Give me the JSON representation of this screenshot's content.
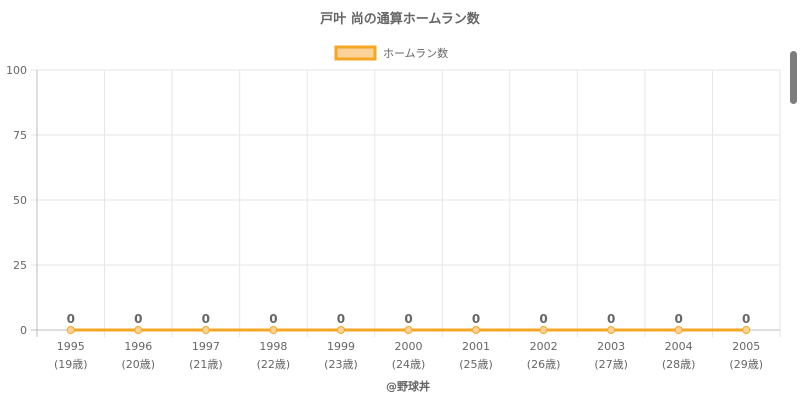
{
  "chart_data": {
    "type": "line",
    "title": "戸叶 尚の通算ホームラン数",
    "legend": {
      "position": "top",
      "label": "ホームラン数"
    },
    "categories": [
      "1995",
      "1996",
      "1997",
      "1998",
      "1999",
      "2000",
      "2001",
      "2002",
      "2003",
      "2004",
      "2005"
    ],
    "category_sublabels": [
      "(19歳)",
      "(20歳)",
      "(21歳)",
      "(22歳)",
      "(23歳)",
      "(24歳)",
      "(25歳)",
      "(26歳)",
      "(27歳)",
      "(28歳)",
      "(29歳)"
    ],
    "series": [
      {
        "name": "ホームラン数",
        "values": [
          0,
          0,
          0,
          0,
          0,
          0,
          0,
          0,
          0,
          0,
          0
        ]
      }
    ],
    "data_labels": [
      "0",
      "0",
      "0",
      "0",
      "0",
      "0",
      "0",
      "0",
      "0",
      "0",
      "0"
    ],
    "ylim": [
      0,
      100
    ],
    "yticks": [
      "0",
      "25",
      "50",
      "75",
      "100"
    ],
    "grid": true,
    "colors": {
      "line": "#f5a623",
      "fill": "#fbd29a",
      "text": "#666666",
      "grid": "#e6e6e6"
    }
  },
  "credit": "@野球丼"
}
